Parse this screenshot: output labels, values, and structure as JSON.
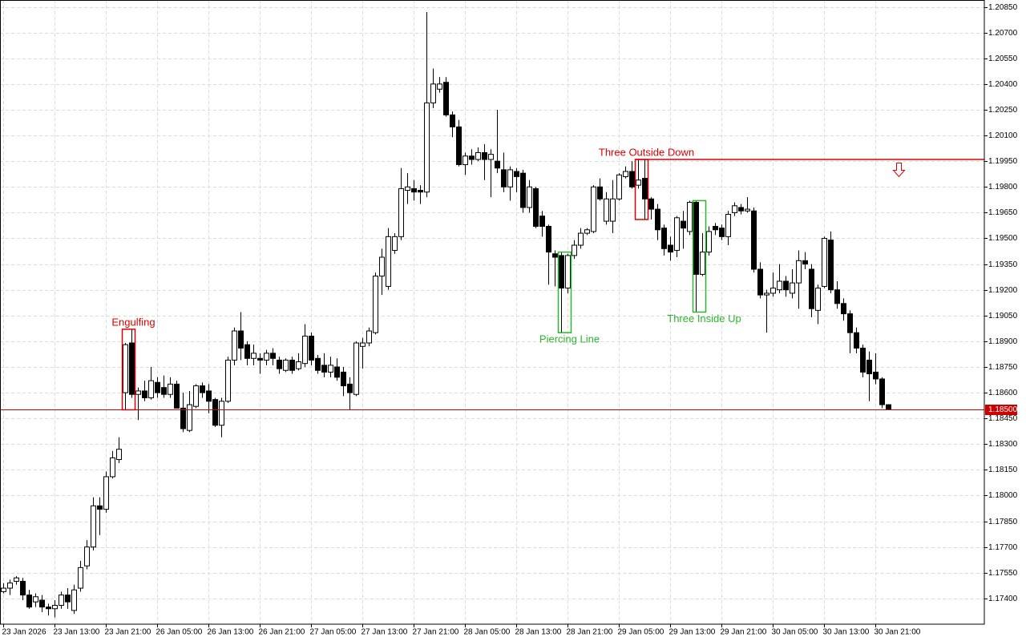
{
  "chart_data": {
    "type": "candlestick",
    "categories": [
      "23 Jan 2026",
      null,
      null,
      null,
      null,
      null,
      null,
      null,
      "23 Jan 13:00",
      null,
      null,
      null,
      null,
      null,
      null,
      null,
      "23 Jan 21:00",
      null,
      null,
      null,
      null,
      null,
      null,
      null,
      "26 Jan 05:00",
      null,
      null,
      null,
      null,
      null,
      null,
      null,
      "26 Jan 13:00",
      null,
      null,
      null,
      null,
      null,
      null,
      null,
      "26 Jan 21:00",
      null,
      null,
      null,
      null,
      null,
      null,
      null,
      "27 Jan 05:00",
      null,
      null,
      null,
      null,
      null,
      null,
      null,
      "27 Jan 13:00",
      null,
      null,
      null,
      null,
      null,
      null,
      null,
      "27 Jan 21:00",
      null,
      null,
      null,
      null,
      null,
      null,
      null,
      "28 Jan 05:00",
      null,
      null,
      null,
      null,
      null,
      null,
      null,
      "28 Jan 13:00",
      null,
      null,
      null,
      null,
      null,
      null,
      null,
      "28 Jan 21:00",
      null,
      null,
      null,
      null,
      null,
      null,
      null,
      "29 Jan 05:00",
      null,
      null,
      null,
      null,
      null,
      null,
      null,
      "29 Jan 13:00",
      null,
      null,
      null,
      null,
      null,
      null,
      null,
      "29 Jan 21:00",
      null,
      null,
      null,
      null,
      null,
      null,
      null,
      "30 Jan 05:00",
      null,
      null,
      null,
      null,
      null,
      null,
      null,
      "30 Jan 13:00",
      null,
      null,
      null,
      null,
      null,
      null,
      null,
      "30 Jan 21:00",
      null,
      null
    ],
    "open": [
      1.1744,
      1.1746,
      1.175,
      1.175,
      1.1742,
      1.1738,
      1.1739,
      1.1735,
      1.1734,
      1.1736,
      1.1742,
      1.1733,
      1.1746,
      1.1759,
      1.177,
      1.1794,
      1.1792,
      1.1811,
      1.1821,
      1.186,
      1.1889,
      1.1859,
      1.1861,
      1.1857,
      1.1866,
      1.1863,
      1.1859,
      1.1865,
      1.1851,
      1.1838,
      1.1852,
      1.1864,
      1.1861,
      1.1856,
      1.1841,
      1.1855,
      1.1879,
      1.1896,
      1.1888,
      1.188,
      1.188,
      1.1879,
      1.1883,
      1.1879,
      1.1873,
      1.1879,
      1.1874,
      1.1877,
      1.1893,
      1.188,
      1.1876,
      1.1872,
      1.1875,
      1.1872,
      1.1865,
      1.1859,
      1.1887,
      1.1889,
      1.1895,
      1.1928,
      1.1922,
      1.1943,
      1.1951,
      1.1978,
      1.1979,
      1.1978,
      1.1977,
      1.2029,
      1.2037,
      1.2041,
      1.2022,
      1.2015,
      1.1993,
      1.1998,
      1.1996,
      1.2,
      1.1996,
      1.1995,
      1.199,
      1.198,
      1.1989,
      1.1988,
      1.1968,
      1.1979,
      1.1963,
      1.1957,
      1.1941,
      1.194,
      1.1921,
      1.194,
      1.1946,
      1.1953,
      1.1954,
      1.198,
      1.196,
      1.196,
      1.1973,
      1.1986,
      1.1989,
      1.1981,
      1.1985,
      1.1973,
      1.1967,
      1.1956,
      1.1946,
      1.1943,
      1.196,
      1.1954,
      1.1971,
      1.1929,
      1.1942,
      1.1957,
      1.1956,
      1.1951,
      1.1965,
      1.1968,
      1.1966,
      1.1966,
      1.1932,
      1.1917,
      1.1918,
      1.192,
      1.1925,
      1.1918,
      1.1924,
      1.1937,
      1.1932,
      1.1908,
      1.1922,
      1.1949,
      1.192,
      1.1912,
      1.1906,
      1.1895,
      1.1886,
      1.1879,
      1.1872,
      1.1868,
      1.1853
    ],
    "high": [
      1.1749,
      1.1751,
      1.1753,
      1.1752,
      1.1745,
      1.1743,
      1.1742,
      1.1737,
      1.1739,
      1.1744,
      1.1746,
      1.1748,
      1.1762,
      1.1774,
      1.1799,
      1.1799,
      1.1814,
      1.1826,
      1.1834,
      1.1889,
      1.1897,
      1.1863,
      1.1867,
      1.1875,
      1.1869,
      1.187,
      1.1869,
      1.1867,
      1.186,
      1.1861,
      1.1865,
      1.1866,
      1.1865,
      1.1857,
      1.1857,
      1.1881,
      1.1898,
      1.1907,
      1.189,
      1.1888,
      1.1883,
      1.1885,
      1.1886,
      1.1881,
      1.188,
      1.1881,
      1.1883,
      1.19,
      1.1895,
      1.1882,
      1.1883,
      1.1881,
      1.188,
      1.1875,
      1.1869,
      1.189,
      1.1892,
      1.1898,
      1.193,
      1.1944,
      1.1956,
      1.1953,
      1.1991,
      1.1988,
      1.1984,
      1.1981,
      1.2082,
      1.2049,
      1.2044,
      1.2044,
      1.2024,
      1.2019,
      1.2,
      1.2002,
      1.2003,
      1.2005,
      1.2002,
      1.2025,
      1.2,
      1.1992,
      1.1991,
      1.199,
      1.1984,
      1.198,
      1.1966,
      1.1958,
      1.1943,
      1.1942,
      1.1941,
      1.1949,
      1.1956,
      1.1956,
      1.1981,
      1.1985,
      1.1977,
      1.1984,
      1.1988,
      1.1992,
      1.1995,
      1.1996,
      1.1996,
      1.1974,
      1.197,
      1.1958,
      1.1951,
      1.1963,
      1.1966,
      1.1972,
      1.1972,
      1.1953,
      1.1957,
      1.1959,
      1.1958,
      1.1966,
      1.1971,
      1.197,
      1.1974,
      1.1968,
      1.1936,
      1.192,
      1.193,
      1.1935,
      1.1928,
      1.1932,
      1.1943,
      1.1942,
      1.1935,
      1.1923,
      1.1951,
      1.1954,
      1.1925,
      1.1915,
      1.1908,
      1.1898,
      1.1888,
      1.1884,
      1.1883,
      1.1869,
      1.1853
    ],
    "low": [
      1.1743,
      1.1742,
      1.1748,
      1.1739,
      1.1734,
      1.1735,
      1.1732,
      1.173,
      1.1729,
      1.1734,
      1.1734,
      1.1731,
      1.1744,
      1.1757,
      1.1768,
      1.1777,
      1.179,
      1.181,
      1.1819,
      1.185,
      1.1857,
      1.1844,
      1.1855,
      1.1856,
      1.1857,
      1.1857,
      1.1857,
      1.1851,
      1.1837,
      1.1837,
      1.1851,
      1.1857,
      1.1848,
      1.184,
      1.1834,
      1.1854,
      1.1876,
      1.1879,
      1.1876,
      1.1876,
      1.1871,
      1.1876,
      1.1876,
      1.1871,
      1.1872,
      1.1871,
      1.1873,
      1.1875,
      1.1876,
      1.1871,
      1.1869,
      1.1869,
      1.1867,
      1.1858,
      1.185,
      1.1858,
      1.1874,
      1.1887,
      1.1894,
      1.1917,
      1.192,
      1.1941,
      1.1949,
      1.197,
      1.1972,
      1.197,
      1.1974,
      1.2026,
      1.2035,
      1.2021,
      1.2009,
      1.1992,
      1.1987,
      1.1993,
      1.1995,
      1.1984,
      1.1974,
      1.1988,
      1.1977,
      1.1972,
      1.1977,
      1.1965,
      1.1965,
      1.1956,
      1.1951,
      1.1923,
      1.1922,
      1.1895,
      1.1918,
      1.1938,
      1.1944,
      1.1952,
      1.1953,
      1.1972,
      1.1958,
      1.1953,
      1.1972,
      1.1985,
      1.1979,
      1.1979,
      1.1961,
      1.1961,
      1.1949,
      1.194,
      1.1937,
      1.1939,
      1.1944,
      1.1952,
      1.1907,
      1.1928,
      1.194,
      1.1952,
      1.1949,
      1.1946,
      1.1963,
      1.1964,
      1.1965,
      1.193,
      1.1915,
      1.1895,
      1.1916,
      1.1918,
      1.1916,
      1.1915,
      1.1909,
      1.1932,
      1.1904,
      1.19,
      1.1921,
      1.1918,
      1.1909,
      1.1902,
      1.1883,
      1.1883,
      1.1869,
      1.1855,
      1.1865,
      1.1851,
      1.185
    ],
    "close": [
      1.1746,
      1.1749,
      1.1752,
      1.1742,
      1.1735,
      1.1741,
      1.1735,
      1.1734,
      1.1736,
      1.1742,
      1.1738,
      1.1745,
      1.1758,
      1.177,
      1.1794,
      1.1792,
      1.1811,
      1.1822,
      1.1827,
      1.1888,
      1.1859,
      1.1861,
      1.1857,
      1.1867,
      1.186,
      1.1859,
      1.1865,
      1.1851,
      1.1839,
      1.1853,
      1.1864,
      1.186,
      1.1855,
      1.1841,
      1.1855,
      1.1879,
      1.1896,
      1.1886,
      1.188,
      1.1883,
      1.1879,
      1.1883,
      1.188,
      1.1874,
      1.1879,
      1.1873,
      1.1878,
      1.1893,
      1.1879,
      1.1873,
      1.1872,
      1.1876,
      1.1869,
      1.1864,
      1.186,
      1.1889,
      1.1889,
      1.1896,
      1.1928,
      1.1939,
      1.1951,
      1.1951,
      1.1979,
      1.198,
      1.1977,
      1.1977,
      1.2029,
      1.204,
      1.204,
      1.2022,
      1.2015,
      1.1993,
      1.1998,
      1.1996,
      1.2,
      1.1996,
      1.1999,
      1.1991,
      1.198,
      1.199,
      1.1986,
      1.1968,
      1.198,
      1.1957,
      1.1957,
      1.1942,
      1.1939,
      1.1921,
      1.194,
      1.1946,
      1.1953,
      1.1955,
      1.198,
      1.1973,
      1.1973,
      1.1973,
      1.1987,
      1.1989,
      1.198,
      1.1984,
      1.1973,
      1.1967,
      1.1955,
      1.1944,
      1.1942,
      1.1962,
      1.1956,
      1.1971,
      1.1929,
      1.1942,
      1.1954,
      1.1955,
      1.1951,
      1.1964,
      1.1969,
      1.1966,
      1.1967,
      1.1932,
      1.1917,
      1.1918,
      1.1921,
      1.1925,
      1.192,
      1.1924,
      1.1937,
      1.1935,
      1.1909,
      1.1921,
      1.195,
      1.192,
      1.1912,
      1.1906,
      1.1895,
      1.1886,
      1.1872,
      1.1871,
      1.1868,
      1.1853,
      1.185
    ],
    "up_color": "#ffffff",
    "down_color": "#000000",
    "ylim": [
      1.1725,
      1.2089
    ],
    "yticks": [
      {
        "value": 1.2085,
        "label": "1.20850"
      },
      {
        "value": 1.207,
        "label": "1.20700"
      },
      {
        "value": 1.2055,
        "label": "1.20550"
      },
      {
        "value": 1.204,
        "label": "1.20400"
      },
      {
        "value": 1.2025,
        "label": "1.20250"
      },
      {
        "value": 1.201,
        "label": "1.20100"
      },
      {
        "value": 1.1995,
        "label": "1.19950"
      },
      {
        "value": 1.198,
        "label": "1.19800"
      },
      {
        "value": 1.1965,
        "label": "1.19650"
      },
      {
        "value": 1.195,
        "label": "1.19500"
      },
      {
        "value": 1.1935,
        "label": "1.19350"
      },
      {
        "value": 1.192,
        "label": "1.19200"
      },
      {
        "value": 1.1905,
        "label": "1.19050"
      },
      {
        "value": 1.189,
        "label": "1.18900"
      },
      {
        "value": 1.1875,
        "label": "1.18750"
      },
      {
        "value": 1.186,
        "label": "1.18600"
      },
      {
        "value": 1.1845,
        "label": "1.18450"
      },
      {
        "value": 1.183,
        "label": "1.18300"
      },
      {
        "value": 1.1815,
        "label": "1.18150"
      },
      {
        "value": 1.18,
        "label": "1.18000"
      },
      {
        "value": 1.1785,
        "label": "1.17850"
      },
      {
        "value": 1.177,
        "label": "1.17700"
      },
      {
        "value": 1.1755,
        "label": "1.17550"
      },
      {
        "value": 1.174,
        "label": "1.17400"
      }
    ],
    "grid": true,
    "last_price": {
      "value": 1.185,
      "label": "1.18500",
      "color": "#cc0000"
    },
    "level": {
      "value": 1.1996,
      "from": 99,
      "color": "#e00000"
    },
    "patterns": [
      {
        "text": "Engulfing",
        "color": "#e00000",
        "candles": [
          19,
          20
        ],
        "side": "above"
      },
      {
        "text": "Piercing Line",
        "color": "#2db52d",
        "candles": [
          87,
          88
        ],
        "side": "below"
      },
      {
        "text": "Three Outside Down",
        "color": "#e00000",
        "candles": [
          99,
          100
        ],
        "side": "above"
      },
      {
        "text": "Three Inside Up",
        "color": "#2db52d",
        "candles": [
          108,
          109
        ],
        "side": "below"
      }
    ]
  }
}
